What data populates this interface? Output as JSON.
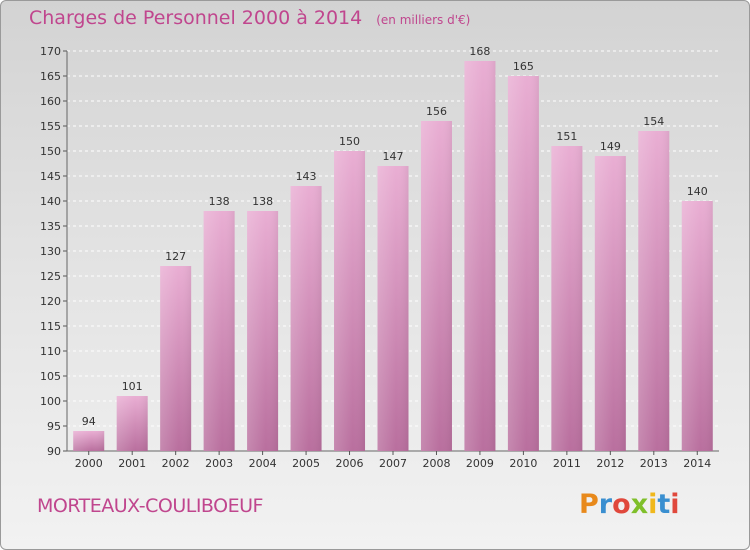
{
  "header": {
    "title": "Charges de Personnel 2000 à 2014",
    "unit": "(en milliers d'€)"
  },
  "footer": {
    "commune": "MORTEAUX-COULIBOEUF",
    "logo_letters": [
      {
        "char": "P",
        "color": "#e8891b"
      },
      {
        "char": "r",
        "color": "#3a8fd0"
      },
      {
        "char": "o",
        "color": "#e0483c"
      },
      {
        "char": "x",
        "color": "#7fbf2a"
      },
      {
        "char": "i",
        "color": "#f0b81c"
      },
      {
        "char": "t",
        "color": "#3a8fd0"
      },
      {
        "char": "i",
        "color": "#e0483c"
      }
    ]
  },
  "colors": {
    "bar_top": "#e9aed3",
    "bar_bottom": "#b96f9e",
    "accent": "#c0468e"
  },
  "chart_data": {
    "type": "bar",
    "title": "Charges de Personnel 2000 à 2014",
    "subtitle": "(en milliers d'€)",
    "categories": [
      "2000",
      "2001",
      "2002",
      "2003",
      "2004",
      "2005",
      "2006",
      "2007",
      "2008",
      "2009",
      "2010",
      "2011",
      "2012",
      "2013",
      "2014"
    ],
    "values": [
      94,
      101,
      127,
      138,
      138,
      143,
      150,
      147,
      156,
      168,
      165,
      151,
      149,
      154,
      140
    ],
    "ylim": [
      90,
      170
    ],
    "yticks": [
      90,
      95,
      100,
      105,
      110,
      115,
      120,
      125,
      130,
      135,
      140,
      145,
      150,
      155,
      160,
      165,
      170
    ],
    "grid": true,
    "data_labels": true
  }
}
